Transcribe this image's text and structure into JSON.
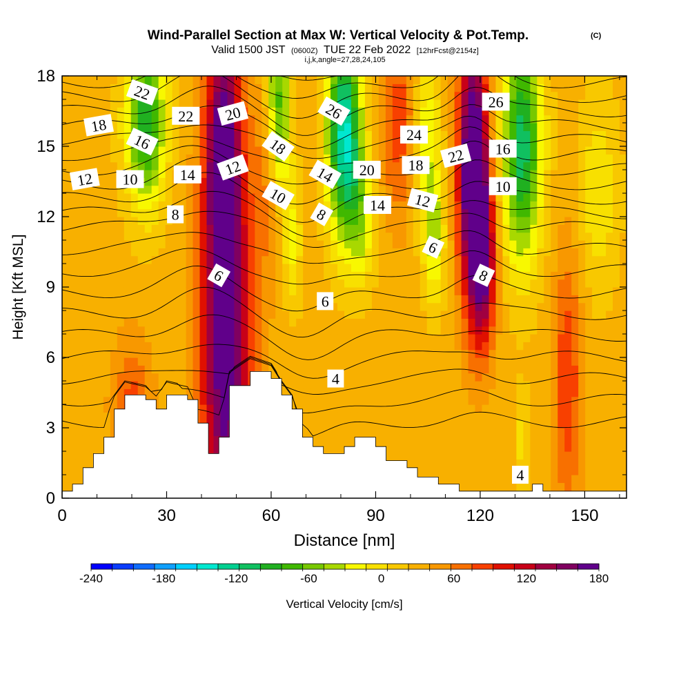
{
  "chart_data": {
    "type": "heatmap",
    "title": "Wind-Parallel Section at Max W: Vertical Velocity & Pot.Temp.",
    "title_tag": "(C)",
    "subtitle": {
      "valid": "Valid 1500 JST",
      "utc": "(0600Z)",
      "date": "TUE 22 Feb 2022",
      "fcst": "[12hrFcst@2154z]"
    },
    "index_line": "i,j,k,angle=27,28,24,105",
    "xlabel": "Distance [nm]",
    "ylabel": "Height [Kft MSL]",
    "xlim": [
      0,
      162
    ],
    "ylim": [
      0,
      18
    ],
    "x_ticks": [
      "0",
      "30",
      "60",
      "90",
      "120",
      "150"
    ],
    "x_tick_values": [
      0,
      30,
      60,
      90,
      120,
      150
    ],
    "y_ticks": [
      "0",
      "3",
      "6",
      "9",
      "12",
      "15",
      "18"
    ],
    "y_tick_values": [
      0,
      3,
      6,
      9,
      12,
      15,
      18
    ],
    "colorbar": {
      "label": "Vertical Velocity [cm/s]",
      "ticks": [
        "-240",
        "-180",
        "-120",
        "-60",
        "0",
        "60",
        "120",
        "180"
      ],
      "tick_values": [
        -240,
        -180,
        -120,
        -60,
        0,
        60,
        120,
        180
      ],
      "range": [
        -240,
        180
      ],
      "colors": [
        "#0000ff",
        "#0a3cff",
        "#0f6cff",
        "#0fa0ff",
        "#00d0ff",
        "#00e8d0",
        "#00d090",
        "#10c060",
        "#20b020",
        "#40b800",
        "#78c800",
        "#a8d800",
        "#f8f800",
        "#f8e000",
        "#f8c800",
        "#f8b000",
        "#f89800",
        "#f87000",
        "#f84000",
        "#e01000",
        "#c80018",
        "#a00040",
        "#800060",
        "#60008a"
      ]
    },
    "terrain": [
      [
        0,
        0.3
      ],
      [
        3,
        0.6
      ],
      [
        6,
        1.3
      ],
      [
        9,
        1.9
      ],
      [
        12,
        2.6
      ],
      [
        15,
        3.8
      ],
      [
        18,
        4.4
      ],
      [
        24,
        4.2
      ],
      [
        27,
        3.8
      ],
      [
        30,
        4.4
      ],
      [
        36,
        4.2
      ],
      [
        39,
        3.2
      ],
      [
        42,
        1.9
      ],
      [
        45,
        2.6
      ],
      [
        48,
        4.8
      ],
      [
        54,
        5.4
      ],
      [
        60,
        5.1
      ],
      [
        63,
        4.4
      ],
      [
        66,
        3.8
      ],
      [
        69,
        2.6
      ],
      [
        72,
        2.2
      ],
      [
        75,
        1.9
      ],
      [
        81,
        2.2
      ],
      [
        84,
        2.6
      ],
      [
        90,
        2.2
      ],
      [
        93,
        1.6
      ],
      [
        99,
        1.3
      ],
      [
        102,
        0.9
      ],
      [
        108,
        0.6
      ],
      [
        114,
        0.3
      ],
      [
        120,
        0.3
      ],
      [
        123,
        0.3
      ],
      [
        135,
        0.6
      ],
      [
        138,
        0.3
      ],
      [
        162,
        0.3
      ]
    ],
    "w_features": [
      {
        "x": 47,
        "y": 7,
        "w": 160,
        "sx": 5,
        "sy": 7
      },
      {
        "x": 46,
        "y": 15,
        "w": 110,
        "sx": 3,
        "sy": 3
      },
      {
        "x": 61,
        "y": 14,
        "w": 80,
        "sx": 3,
        "sy": 3
      },
      {
        "x": 118,
        "y": 14,
        "w": 190,
        "sx": 3,
        "sy": 4
      },
      {
        "x": 121,
        "y": 10,
        "w": 110,
        "sx": 2.5,
        "sy": 2.5
      },
      {
        "x": 98,
        "y": 16,
        "w": 60,
        "sx": 5,
        "sy": 3
      },
      {
        "x": 145,
        "y": 5,
        "w": 60,
        "sx": 3,
        "sy": 4
      },
      {
        "x": 20,
        "y": 4,
        "w": 50,
        "sx": 4,
        "sy": 2
      },
      {
        "x": 24,
        "y": 16,
        "w": -130,
        "sx": 4,
        "sy": 2.5
      },
      {
        "x": 62,
        "y": 16,
        "w": -150,
        "sx": 2.5,
        "sy": 3
      },
      {
        "x": 81,
        "y": 15.5,
        "w": -170,
        "sx": 3.5,
        "sy": 3
      },
      {
        "x": 104,
        "y": 15.5,
        "w": -80,
        "sx": 3,
        "sy": 3
      },
      {
        "x": 132,
        "y": 15,
        "w": -140,
        "sx": 4,
        "sy": 3.5
      },
      {
        "x": 107,
        "y": 11,
        "w": -60,
        "sx": 2,
        "sy": 2
      },
      {
        "x": 66,
        "y": 11,
        "w": -50,
        "sx": 2,
        "sy": 2
      },
      {
        "x": 86,
        "y": 12,
        "w": -60,
        "sx": 3,
        "sy": 2
      },
      {
        "x": 132,
        "y": 2.5,
        "w": -30,
        "sx": 1.5,
        "sy": 1.5
      },
      {
        "x": 154,
        "y": 13,
        "w": -40,
        "sx": 4,
        "sy": 3
      }
    ],
    "w_background": 30,
    "isentrope_levels": [
      4,
      6,
      8,
      10,
      12,
      14,
      16,
      18,
      20,
      22,
      24,
      26
    ],
    "isentrope_labels": [
      {
        "text": "22",
        "x": 23,
        "y": 17.3,
        "rot": 20
      },
      {
        "text": "22",
        "x": 35.5,
        "y": 16.3,
        "rot": 0
      },
      {
        "text": "18",
        "x": 10.5,
        "y": 15.9,
        "rot": -10
      },
      {
        "text": "16",
        "x": 23,
        "y": 15.2,
        "rot": 25
      },
      {
        "text": "20",
        "x": 49,
        "y": 16.4,
        "rot": -15
      },
      {
        "text": "18",
        "x": 62,
        "y": 15,
        "rot": 35
      },
      {
        "text": "26",
        "x": 78,
        "y": 16.5,
        "rot": 30
      },
      {
        "text": "24",
        "x": 101,
        "y": 15.5,
        "rot": 0
      },
      {
        "text": "26",
        "x": 124.5,
        "y": 16.9,
        "rot": 0
      },
      {
        "text": "12",
        "x": 6.5,
        "y": 13.6,
        "rot": -10
      },
      {
        "text": "10",
        "x": 19.5,
        "y": 13.6,
        "rot": 0
      },
      {
        "text": "14",
        "x": 36,
        "y": 13.8,
        "rot": 0
      },
      {
        "text": "12",
        "x": 49,
        "y": 14.1,
        "rot": -20
      },
      {
        "text": "10",
        "x": 62,
        "y": 12.9,
        "rot": 30
      },
      {
        "text": "14",
        "x": 75.5,
        "y": 13.8,
        "rot": 30
      },
      {
        "text": "20",
        "x": 87.5,
        "y": 14,
        "rot": 0
      },
      {
        "text": "18",
        "x": 101.5,
        "y": 14.2,
        "rot": 0
      },
      {
        "text": "22",
        "x": 113,
        "y": 14.6,
        "rot": -15
      },
      {
        "text": "16",
        "x": 126.5,
        "y": 14.9,
        "rot": 0
      },
      {
        "text": "8",
        "x": 32.5,
        "y": 12.1,
        "rot": 0
      },
      {
        "text": "8",
        "x": 74.5,
        "y": 12.1,
        "rot": 30
      },
      {
        "text": "14",
        "x": 90.5,
        "y": 12.5,
        "rot": 0
      },
      {
        "text": "12",
        "x": 103.5,
        "y": 12.7,
        "rot": 15
      },
      {
        "text": "10",
        "x": 126.5,
        "y": 13.3,
        "rot": 0
      },
      {
        "text": "6",
        "x": 45,
        "y": 9.5,
        "rot": 30
      },
      {
        "text": "6",
        "x": 106.5,
        "y": 10.7,
        "rot": 25
      },
      {
        "text": "8",
        "x": 121,
        "y": 9.5,
        "rot": 25
      },
      {
        "text": "6",
        "x": 75.5,
        "y": 8.4,
        "rot": 0
      },
      {
        "text": "4",
        "x": 78.5,
        "y": 5.1,
        "rot": 0
      },
      {
        "text": "4",
        "x": 131.5,
        "y": 1,
        "rot": 0
      }
    ]
  }
}
